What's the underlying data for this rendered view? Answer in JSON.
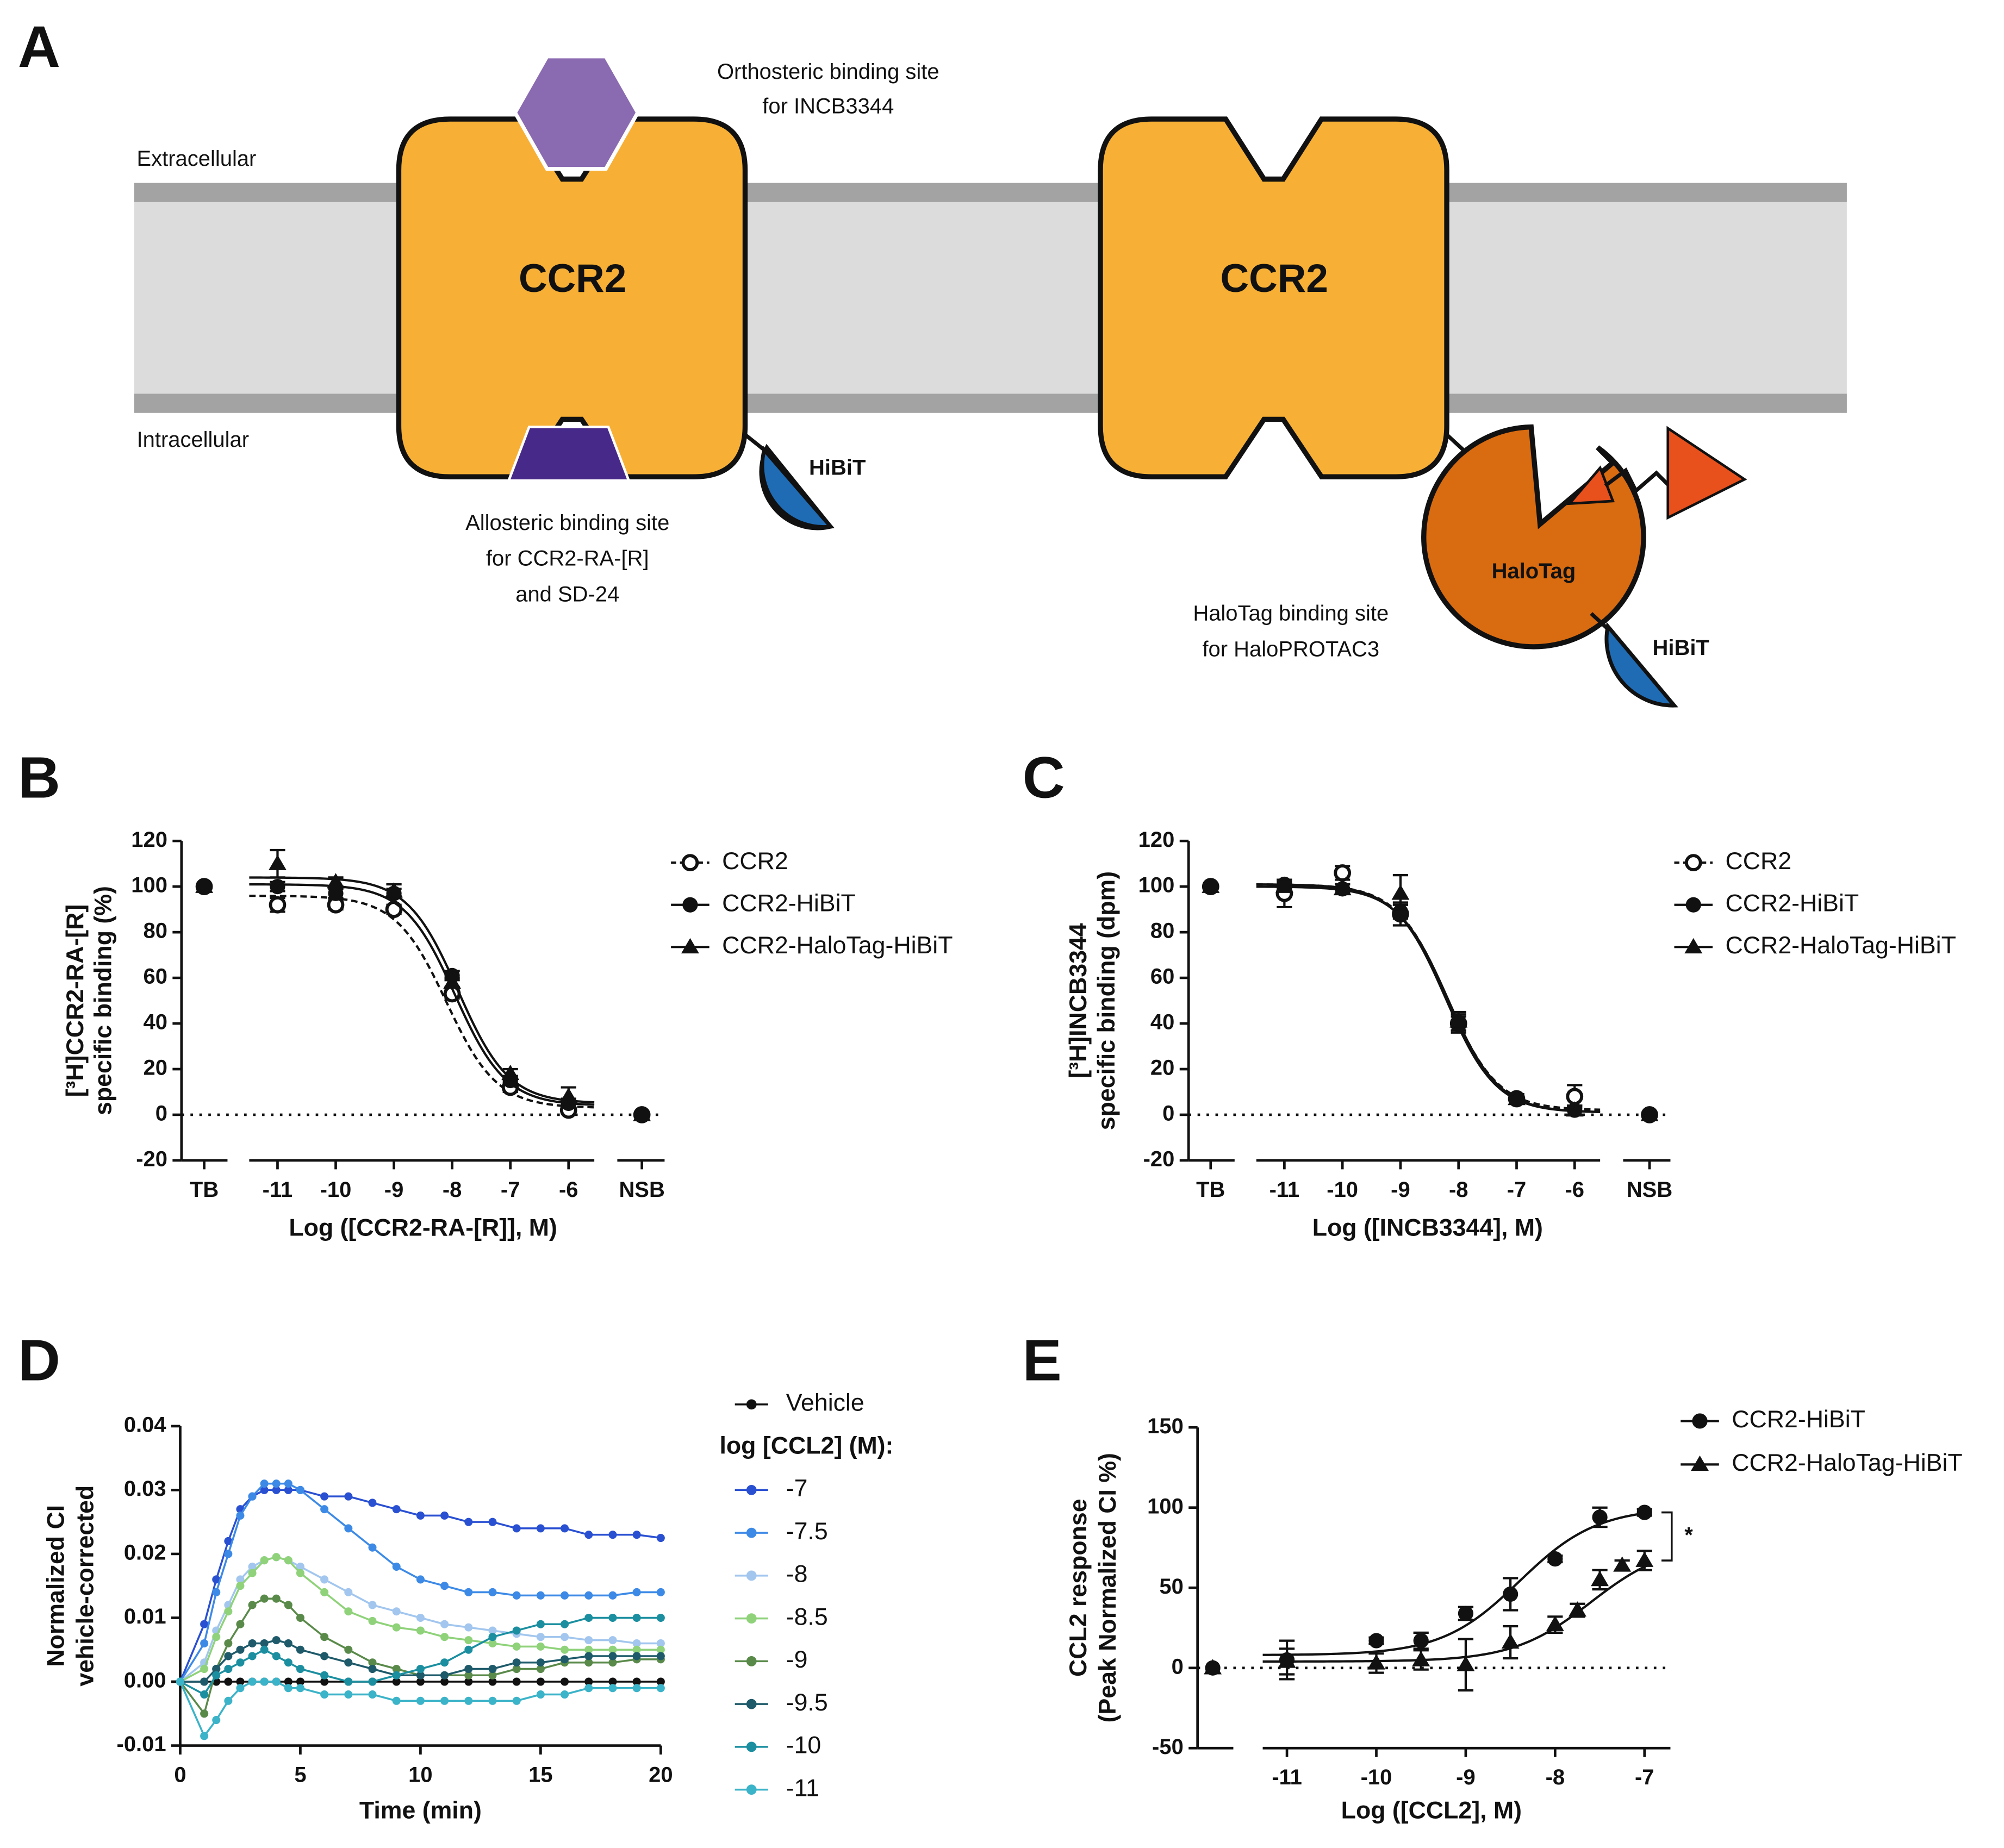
{
  "diagram": {
    "panel_label": "A",
    "extracellular": "Extracellular",
    "intracellular": "Intracellular",
    "receptor_left": "CCR2",
    "receptor_right": "CCR2",
    "orthosteric": [
      "Orthosteric binding site",
      "for INCB3344"
    ],
    "allosteric": [
      "Allosteric binding site",
      "for CCR2-RA-[R]",
      "and SD-24"
    ],
    "hibit_left": "HiBiT",
    "hibit_right": "HiBiT",
    "halotag": "HaloTag",
    "halotag_site": [
      "HaloTag binding site",
      "for HaloPROTAC3"
    ]
  },
  "chart_data": [
    {
      "type": "scatter",
      "panel_label": "B",
      "ylabel": [
        "[³H]CCR2-RA-[R]",
        "specific binding (%)"
      ],
      "xlabel": "Log ([CCR2-RA-[R]], M)",
      "x": [
        -12.26,
        -11,
        -10,
        -9,
        -8,
        -7,
        -6,
        -4.74
      ],
      "xlim": [
        -12.65,
        -4.35
      ],
      "xticks": [
        {
          "value": -12.26,
          "label": "TB"
        },
        -11,
        -10,
        -9,
        -8,
        -7,
        -6,
        {
          "value": -4.74,
          "label": "NSB"
        }
      ],
      "ylim": [
        -20,
        120
      ],
      "yticks": [
        -20,
        0,
        20,
        40,
        60,
        80,
        100,
        120
      ],
      "zero_line": true,
      "series": [
        {
          "name": "CCR2",
          "marker": "open-circle",
          "dashed": true,
          "color": "#111111",
          "values": [
            100,
            92,
            92,
            90,
            53,
            12,
            2,
            0
          ],
          "errors": [
            0,
            3,
            2,
            2,
            2,
            2,
            1,
            0
          ],
          "fit": {
            "top": 96,
            "bottom": 3,
            "log_x50": -8.1,
            "hill": 1
          }
        },
        {
          "name": "CCR2-HiBiT",
          "marker": "circle",
          "dashed": false,
          "color": "#111111",
          "values": [
            100,
            100,
            97,
            97,
            61,
            15,
            5,
            0
          ],
          "errors": [
            0,
            2,
            2,
            2,
            2,
            2,
            2,
            0
          ],
          "fit": {
            "top": 101,
            "bottom": 4,
            "log_x50": -7.95,
            "hill": 1
          }
        },
        {
          "name": "CCR2-HaloTag-HiBiT",
          "marker": "triangle",
          "dashed": false,
          "color": "#111111",
          "values": [
            100,
            110,
            102,
            98,
            58,
            18,
            8,
            0
          ],
          "errors": [
            0,
            6,
            2,
            3,
            2,
            2,
            4,
            0
          ],
          "fit": {
            "top": 104,
            "bottom": 5,
            "log_x50": -7.9,
            "hill": 1
          }
        }
      ]
    },
    {
      "type": "scatter",
      "panel_label": "C",
      "ylabel": [
        "[³H]INCB3344",
        "specific binding (dpm)"
      ],
      "xlabel": "Log ([INCB3344], M)",
      "x": [
        -12.27,
        -11,
        -10,
        -9,
        -8,
        -7,
        -6,
        -4.71
      ],
      "xlim": [
        -12.65,
        -4.35
      ],
      "xticks": [
        {
          "value": -12.27,
          "label": "TB"
        },
        -11,
        -10,
        -9,
        -8,
        -7,
        -6,
        {
          "value": -4.71,
          "label": "NSB"
        }
      ],
      "ylim": [
        -20,
        120
      ],
      "yticks": [
        -20,
        0,
        20,
        40,
        60,
        80,
        100,
        120
      ],
      "zero_line": true,
      "series": [
        {
          "name": "CCR2",
          "marker": "open-circle",
          "dashed": true,
          "color": "#111111",
          "values": [
            100,
            97,
            106,
            88,
            40,
            7,
            8,
            0
          ],
          "errors": [
            0,
            6,
            3,
            5,
            4,
            2,
            5,
            0
          ],
          "fit": {
            "top": 101,
            "bottom": 2,
            "log_x50": -8.2,
            "hill": 1
          }
        },
        {
          "name": "CCR2-HiBiT",
          "marker": "circle",
          "dashed": false,
          "color": "#111111",
          "values": [
            100,
            101,
            99,
            89,
            40,
            7,
            2,
            0
          ],
          "errors": [
            0,
            2,
            2,
            3,
            3,
            2,
            2,
            0
          ],
          "fit": {
            "top": 101,
            "bottom": 1,
            "log_x50": -8.22,
            "hill": 1
          }
        },
        {
          "name": "CCR2-HaloTag-HiBiT",
          "marker": "triangle",
          "dashed": false,
          "color": "#111111",
          "values": [
            100,
            100,
            99,
            97,
            41,
            7,
            2,
            0
          ],
          "errors": [
            0,
            2,
            2,
            8,
            4,
            2,
            2,
            0
          ],
          "fit": {
            "top": 100,
            "bottom": 1,
            "log_x50": -8.18,
            "hill": 1
          }
        }
      ]
    },
    {
      "type": "line",
      "panel_label": "D",
      "ylabel": [
        "Normalized CI",
        "vehicle-corrected"
      ],
      "xlabel": "Time (min)",
      "legend_title": "log [CCL2] (M):",
      "x": [
        0,
        1,
        1.5,
        2,
        2.5,
        3,
        3.5,
        4,
        4.5,
        5,
        6,
        7,
        8,
        9,
        10,
        11,
        12,
        13,
        14,
        15,
        16,
        17,
        18,
        19,
        20
      ],
      "xlim": [
        0,
        20
      ],
      "xticks": [
        0,
        5,
        10,
        15,
        20
      ],
      "ylim": [
        -0.01,
        0.04
      ],
      "yticks": [
        -0.01,
        {
          "value": 0,
          "label": "0.00"
        },
        0.01,
        0.02,
        0.03,
        0.04
      ],
      "series": [
        {
          "name": "Vehicle",
          "color": "#111111",
          "values": [
            0,
            0,
            0,
            0,
            0,
            0,
            0,
            0,
            0,
            0,
            0,
            0,
            0,
            0,
            0,
            0,
            0,
            0,
            0,
            0,
            0,
            0,
            0,
            0,
            0
          ]
        },
        {
          "name": "-7",
          "color": "#2a50d2",
          "values": [
            0,
            0.009,
            0.016,
            0.022,
            0.027,
            0.029,
            0.03,
            0.03,
            0.03,
            0.03,
            0.029,
            0.029,
            0.028,
            0.027,
            0.026,
            0.026,
            0.025,
            0.025,
            0.024,
            0.024,
            0.024,
            0.023,
            0.023,
            0.023,
            0.0225
          ]
        },
        {
          "name": "-7.5",
          "color": "#3d8ae6",
          "values": [
            0,
            0.006,
            0.014,
            0.02,
            0.026,
            0.029,
            0.031,
            0.031,
            0.031,
            0.03,
            0.027,
            0.024,
            0.021,
            0.018,
            0.016,
            0.015,
            0.014,
            0.014,
            0.0135,
            0.0135,
            0.0135,
            0.0135,
            0.0135,
            0.014,
            0.014
          ]
        },
        {
          "name": "-8",
          "color": "#a2c6ee",
          "values": [
            0,
            0.003,
            0.008,
            0.012,
            0.016,
            0.018,
            0.019,
            0.0195,
            0.019,
            0.018,
            0.016,
            0.014,
            0.012,
            0.011,
            0.01,
            0.009,
            0.0085,
            0.008,
            0.0075,
            0.007,
            0.007,
            0.0065,
            0.0065,
            0.006,
            0.006
          ]
        },
        {
          "name": "-8.5",
          "color": "#8fd27a",
          "values": [
            0,
            0.002,
            0.007,
            0.011,
            0.015,
            0.017,
            0.019,
            0.0195,
            0.019,
            0.017,
            0.014,
            0.011,
            0.0095,
            0.0085,
            0.008,
            0.007,
            0.0065,
            0.006,
            0.0055,
            0.0055,
            0.005,
            0.005,
            0.005,
            0.005,
            0.005
          ]
        },
        {
          "name": "-9",
          "color": "#5a8a4a",
          "values": [
            0,
            -0.005,
            0.002,
            0.006,
            0.009,
            0.012,
            0.013,
            0.013,
            0.012,
            0.01,
            0.007,
            0.005,
            0.003,
            0.002,
            0.001,
            0.001,
            0.001,
            0.001,
            0.002,
            0.002,
            0.003,
            0.003,
            0.003,
            0.0035,
            0.0035
          ]
        },
        {
          "name": "-9.5",
          "color": "#1e5a6a",
          "values": [
            0,
            0,
            0.002,
            0.004,
            0.005,
            0.006,
            0.006,
            0.0065,
            0.006,
            0.005,
            0.004,
            0.003,
            0.002,
            0.001,
            0.001,
            0.001,
            0.002,
            0.002,
            0.003,
            0.003,
            0.0035,
            0.004,
            0.004,
            0.004,
            0.004
          ]
        },
        {
          "name": "-10",
          "color": "#1b8fa0",
          "values": [
            0,
            -0.002,
            0.001,
            0.002,
            0.003,
            0.004,
            0.005,
            0.004,
            0.003,
            0.002,
            0.001,
            0,
            0,
            0.001,
            0.002,
            0.003,
            0.005,
            0.007,
            0.008,
            0.009,
            0.009,
            0.01,
            0.01,
            0.01,
            0.01
          ]
        },
        {
          "name": "-11",
          "color": "#3bb3c8",
          "values": [
            0,
            -0.0085,
            -0.006,
            -0.003,
            -0.001,
            0,
            0,
            0,
            -0.001,
            -0.001,
            -0.002,
            -0.002,
            -0.002,
            -0.003,
            -0.003,
            -0.003,
            -0.003,
            -0.003,
            -0.003,
            -0.002,
            -0.002,
            -0.001,
            -0.001,
            -0.001,
            -0.001
          ]
        }
      ]
    },
    {
      "type": "scatter",
      "panel_label": "E",
      "ylabel": [
        "CCL2 response",
        "(Peak Normalized CI %)"
      ],
      "xlabel": "Log ([CCL2], M)",
      "xlim": [
        -12,
        -6.71
      ],
      "xticks": [
        -11,
        -10,
        -9,
        -8,
        -7
      ],
      "ylim": [
        -50,
        150
      ],
      "yticks": [
        -50,
        0,
        50,
        100,
        150
      ],
      "zero_line": true,
      "annotation": "*",
      "series": [
        {
          "name": "CCR2-HiBiT",
          "marker": "circle",
          "dashed": false,
          "color": "#111111",
          "x": [
            -11.83,
            -11,
            -10,
            -9.5,
            -9,
            -8.5,
            -8,
            -7.5,
            -7
          ],
          "values": [
            0,
            5,
            17,
            17,
            34,
            46,
            68,
            94,
            97
          ],
          "errors": [
            0,
            12,
            2,
            5,
            4,
            10,
            2,
            6,
            2
          ],
          "fit": {
            "top": 100,
            "bottom": 8,
            "log_x50": -8.4,
            "hill": -1
          }
        },
        {
          "name": "CCR2-HaloTag-HiBiT",
          "marker": "triangle",
          "dashed": false,
          "color": "#111111",
          "x": [
            -11.83,
            -11,
            -10,
            -9.5,
            -9,
            -8.5,
            -8,
            -7.75,
            -7.5,
            -7.25,
            -7
          ],
          "values": [
            0,
            4,
            3,
            5,
            2,
            16,
            27,
            36,
            55,
            64,
            67
          ],
          "errors": [
            0,
            8,
            6,
            6,
            16,
            10,
            5,
            4,
            6,
            3,
            6
          ],
          "fit": {
            "top": 78,
            "bottom": 4,
            "log_x50": -7.6,
            "hill": -1
          }
        }
      ]
    }
  ]
}
